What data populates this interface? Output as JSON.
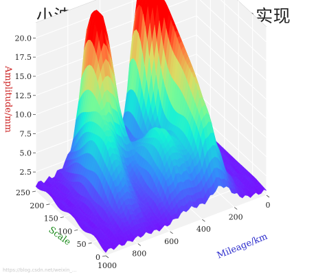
{
  "page": {
    "title": "小波变换阈值分割的Python实现"
  },
  "watermark": "https://blog.csdn.net/weixin_...",
  "chart_data": {
    "type": "surface",
    "title": "",
    "xlabel": "Mileage/km",
    "ylabel": "Scale",
    "zlabel": "Amplitude/mm",
    "xlabel_color": "#2c2ccc",
    "ylabel_color": "#1a8a1a",
    "zlabel_color": "#cc2222",
    "colormap": "rainbow",
    "grid": true,
    "xlim": [
      0,
      1000
    ],
    "ylim": [
      0,
      250
    ],
    "zlim": [
      0,
      20
    ],
    "x_ticks": [
      "0",
      "200",
      "400",
      "600",
      "800",
      "1000"
    ],
    "y_ticks": [
      "0",
      "50",
      "100",
      "150",
      "200",
      "250"
    ],
    "z_ticks": [
      "2.5",
      "5.0",
      "7.5",
      "10.0",
      "12.5",
      "15.0",
      "17.5",
      "20.0"
    ],
    "peaks": [
      {
        "x": 360,
        "y": 235,
        "z": 19.5,
        "sx": 55,
        "sy": 35
      },
      {
        "x": 290,
        "y": 170,
        "z": 15.5,
        "sx": 45,
        "sy": 70
      },
      {
        "x": 680,
        "y": 230,
        "z": 14.5,
        "sx": 45,
        "sy": 45
      },
      {
        "x": 610,
        "y": 235,
        "z": 13.5,
        "sx": 45,
        "sy": 45
      },
      {
        "x": 760,
        "y": 150,
        "z": 8.5,
        "sx": 60,
        "sy": 60
      },
      {
        "x": 170,
        "y": 200,
        "z": 10.5,
        "sx": 55,
        "sy": 45
      },
      {
        "x": 480,
        "y": 100,
        "z": 8.0,
        "sx": 80,
        "sy": 60
      },
      {
        "x": 280,
        "y": 60,
        "z": 6.5,
        "sx": 70,
        "sy": 50
      }
    ]
  }
}
